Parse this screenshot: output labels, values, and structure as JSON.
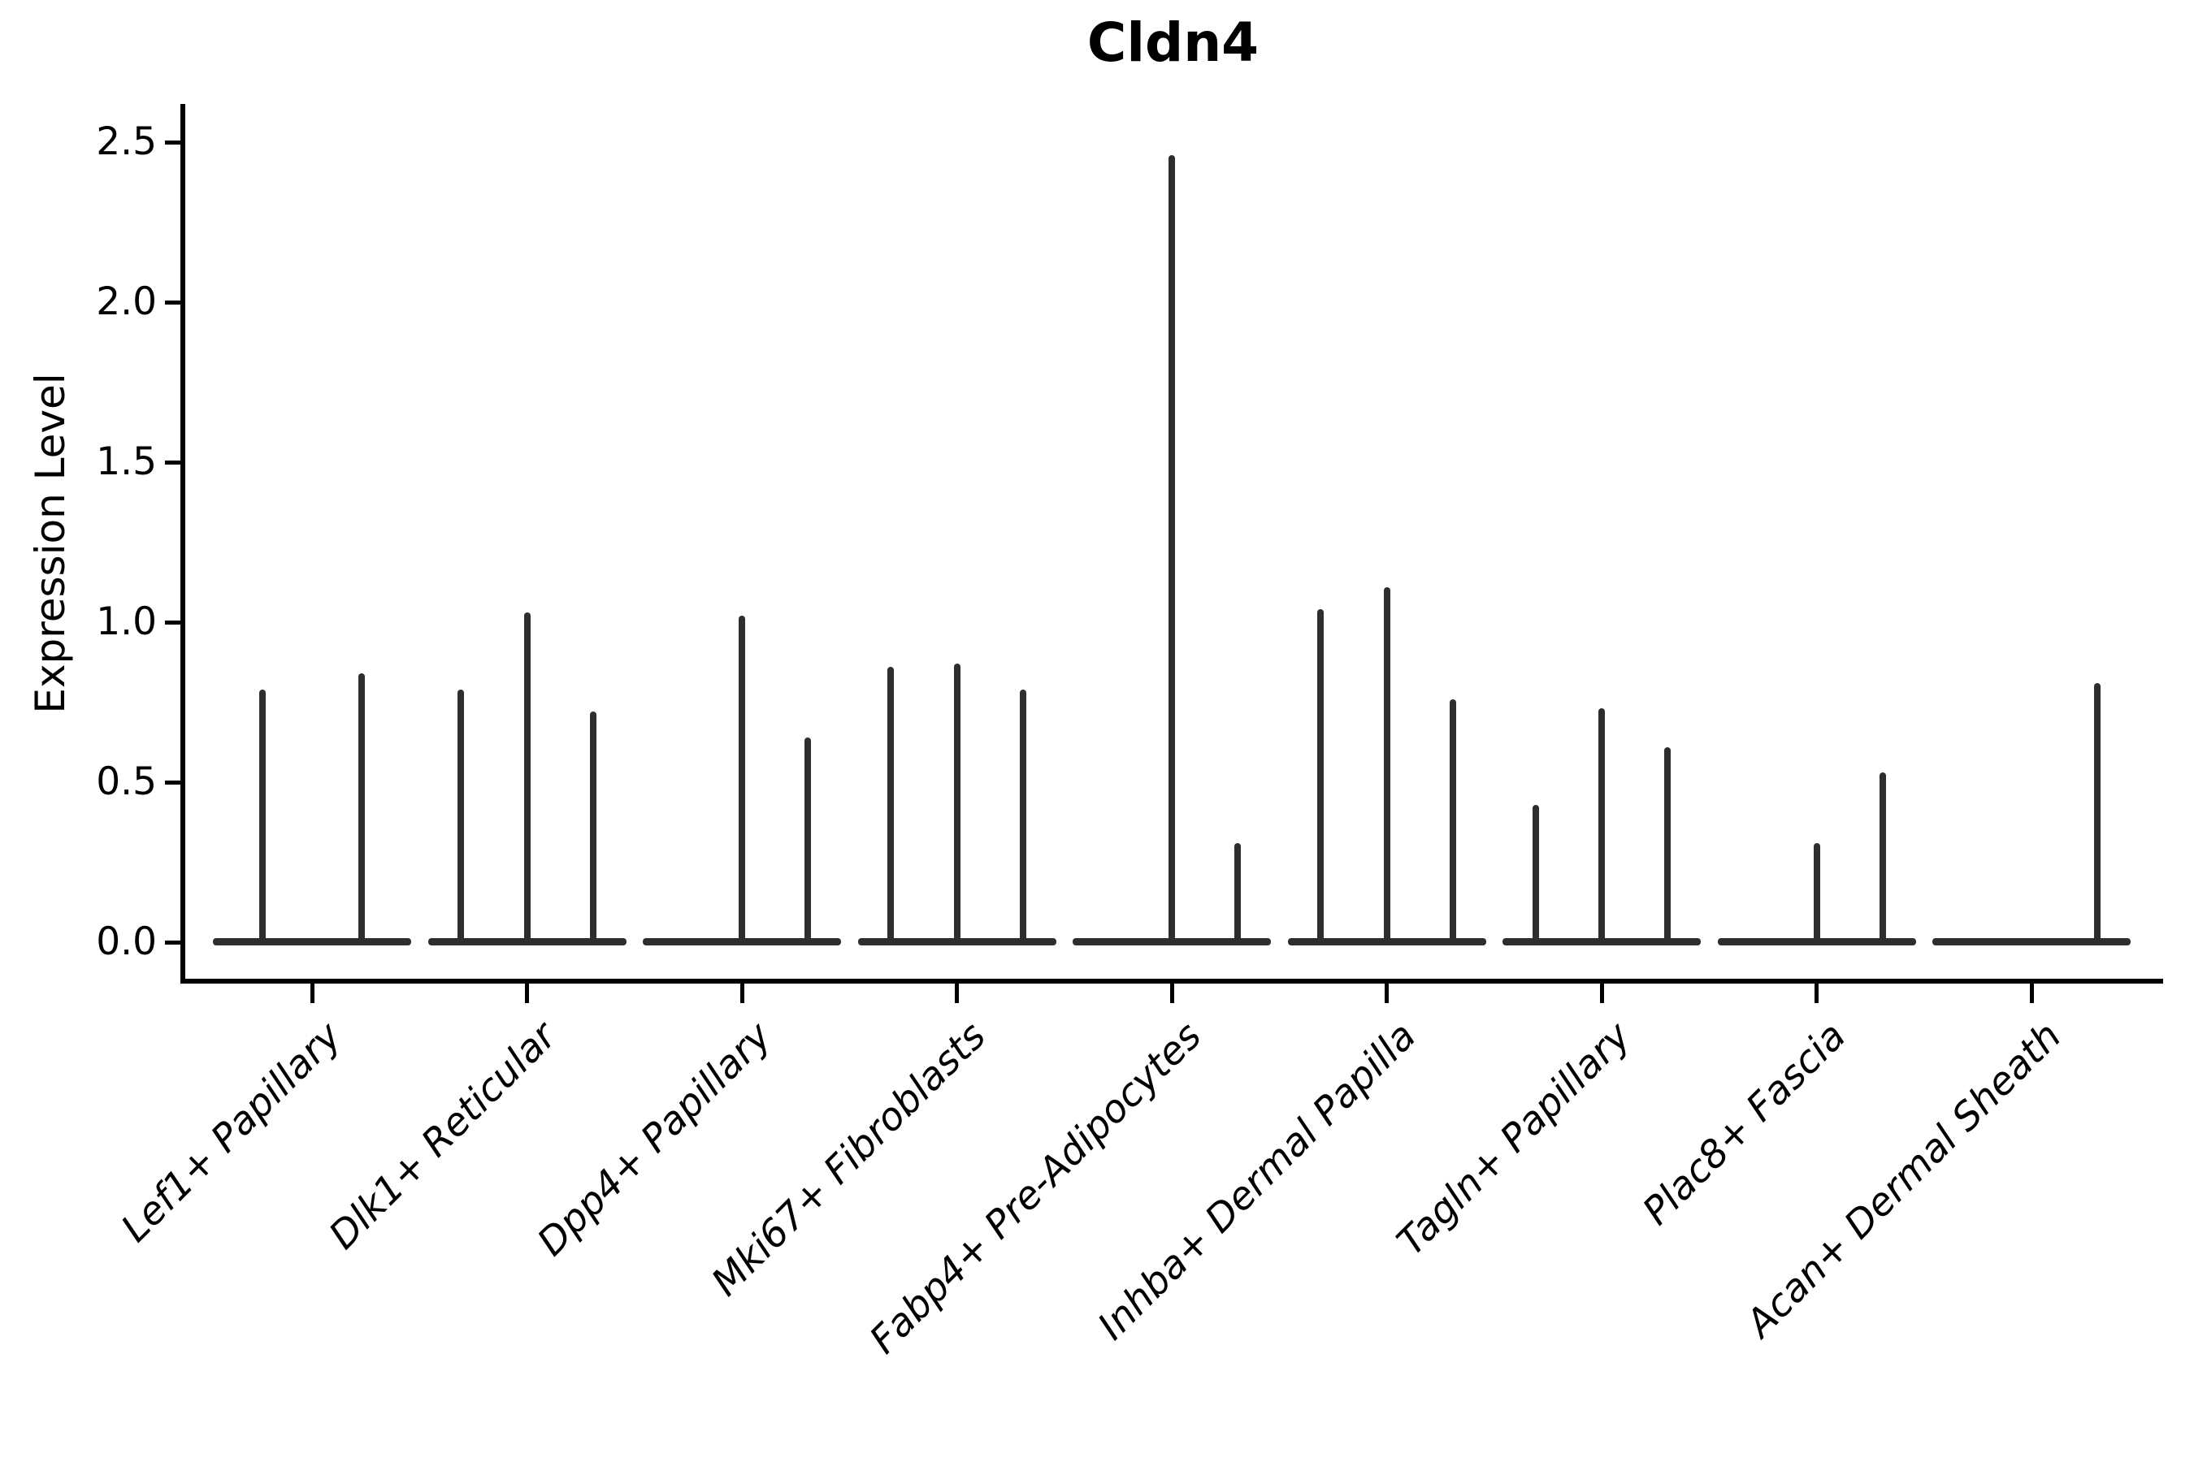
{
  "colors": {
    "background": "#ffffff",
    "axis": "#000000",
    "violin_stroke": "#2e2e2e"
  },
  "chart_data": {
    "type": "violin",
    "title": "Cldn4",
    "xlabel": "",
    "ylabel": "Expression Level",
    "ylim": [
      0,
      2.5
    ],
    "yticks": [
      0.0,
      0.5,
      1.0,
      1.5,
      2.0,
      2.5
    ],
    "ytick_labels": [
      "0.0",
      "0.5",
      "1.0",
      "1.5",
      "2.0",
      "2.5"
    ],
    "grid": false,
    "legend": false,
    "note": "Each group shows very thin violins: a flat baseline at 0 with narrow spikes; values below are the max expression (spike top) per violin within each group; 0 means flat baseline only (no spike).",
    "groups": [
      {
        "label": "Lef1+ Papillary",
        "violin_max": [
          0.79,
          0.84
        ]
      },
      {
        "label": "Dlk1+ Reticular",
        "violin_max": [
          0.79,
          1.03,
          0.72
        ]
      },
      {
        "label": "Dpp4+ Papillary",
        "violin_max": [
          0,
          1.02,
          0.64
        ]
      },
      {
        "label": "Mki67+ Fibroblasts",
        "violin_max": [
          0.86,
          0.87,
          0.79
        ]
      },
      {
        "label": "Fabp4+ Pre-Adipocytes",
        "violin_max": [
          0,
          2.46,
          0.31
        ]
      },
      {
        "label": "Inhba+ Dermal Papilla",
        "violin_max": [
          1.04,
          1.11,
          0.76
        ]
      },
      {
        "label": "Tagln+ Papillary",
        "violin_max": [
          0.43,
          0.73,
          0.61
        ]
      },
      {
        "label": "Plac8+ Fascia",
        "violin_max": [
          0,
          0.31,
          0.53
        ]
      },
      {
        "label": "Acan+ Dermal Sheath",
        "violin_max": [
          0,
          0,
          0.81
        ]
      }
    ]
  }
}
